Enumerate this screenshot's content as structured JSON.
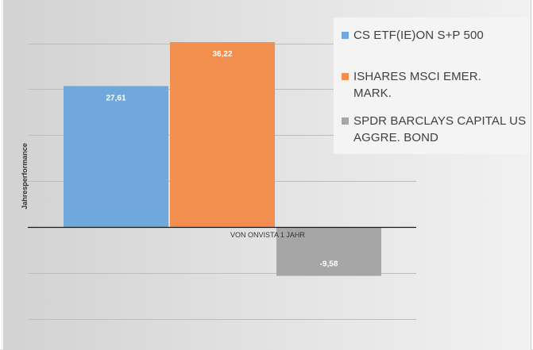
{
  "chart_data": {
    "type": "bar",
    "categories": [
      "VON ONVISTA   1 JAHR"
    ],
    "series": [
      {
        "name": "CS ETF(IE)ON S+P 500",
        "values": [
          27.61
        ],
        "label": "27,61",
        "color": "#6fa8dc"
      },
      {
        "name": "ISHARES MSCI EMER. MARK.",
        "values": [
          36.22
        ],
        "label": "36,22",
        "color": "#f28e4e"
      },
      {
        "name": "SPDR BARCLAYS CAPITAL US AGGRE. BOND",
        "values": [
          -9.58
        ],
        "label": "-9,58",
        "color": "#a6a6a6"
      }
    ],
    "title": "",
    "xlabel": "",
    "ylabel": "Jahresperformance",
    "ylim": [
      -18.5,
      40
    ],
    "gridlines": [
      -18,
      -9,
      9,
      18,
      27,
      36
    ],
    "legend_position": "top-right",
    "grid": true
  },
  "legend": [
    {
      "label_lines": [
        "CS ETF(IE)ON S+P 500"
      ]
    },
    {
      "label_lines": [
        "ISHARES MSCI EMER.",
        "MARK."
      ]
    },
    {
      "label_lines": [
        "SPDR BARCLAYS CAPITAL US",
        "AGGRE. BOND"
      ]
    }
  ]
}
